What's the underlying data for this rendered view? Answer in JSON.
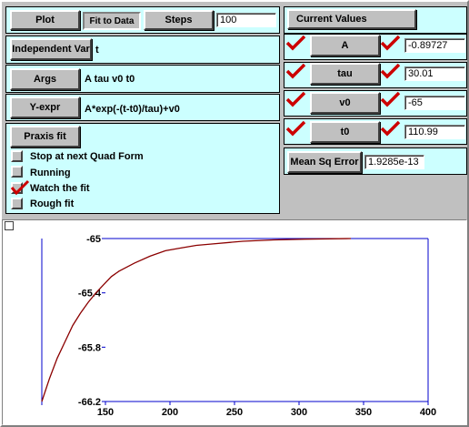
{
  "toolbar": {
    "plot_label": "Plot",
    "fit_to_data_label": "Fit to Data",
    "steps_label": "Steps",
    "steps_value": "100"
  },
  "model": {
    "independent_var_label": "Independent Var",
    "independent_var_value": "t",
    "args_label": "Args",
    "args_value": "A tau v0 t0",
    "yexpr_label": "Y-expr",
    "yexpr_value": "A*exp(-(t-t0)/tau)+v0"
  },
  "fit": {
    "praxis_label": "Praxis fit",
    "options": [
      {
        "label": "Stop at next Quad Form",
        "checked": false
      },
      {
        "label": "Running",
        "checked": false
      },
      {
        "label": "Watch the fit",
        "checked": true
      },
      {
        "label": "Rough fit",
        "checked": false
      }
    ]
  },
  "values": {
    "header": "Current Values",
    "params": [
      {
        "name": "A",
        "value": "-0.89727"
      },
      {
        "name": "tau",
        "value": "30.01"
      },
      {
        "name": "v0",
        "value": "-65"
      },
      {
        "name": "t0",
        "value": "110.99"
      }
    ],
    "mse_label": "Mean Sq Error",
    "mse_value": "1.9285e-13"
  },
  "chart_data": {
    "type": "line",
    "xlim": [
      150,
      400
    ],
    "ylim": [
      -66.2,
      -65.0
    ],
    "x_ticks": [
      "150",
      "200",
      "250",
      "300",
      "350",
      "400"
    ],
    "y_ticks": [
      "-65",
      "-65.4",
      "-65.8",
      "-66.2"
    ],
    "series": [
      {
        "color": "#8b0000",
        "x": [
          150,
          155,
          160,
          165,
          170,
          175,
          180,
          185,
          190,
          195,
          200,
          210,
          220,
          230,
          240,
          250,
          260,
          280,
          300,
          320,
          350
        ],
        "y": [
          -66.2,
          -66.03,
          -65.88,
          -65.76,
          -65.64,
          -65.55,
          -65.47,
          -65.4,
          -65.34,
          -65.28,
          -65.24,
          -65.18,
          -65.13,
          -65.09,
          -65.07,
          -65.05,
          -65.04,
          -65.02,
          -65.01,
          -65.005,
          -65.0
        ]
      }
    ],
    "colors": {
      "axis": "#0000cc",
      "curve": "#8b0000"
    }
  }
}
